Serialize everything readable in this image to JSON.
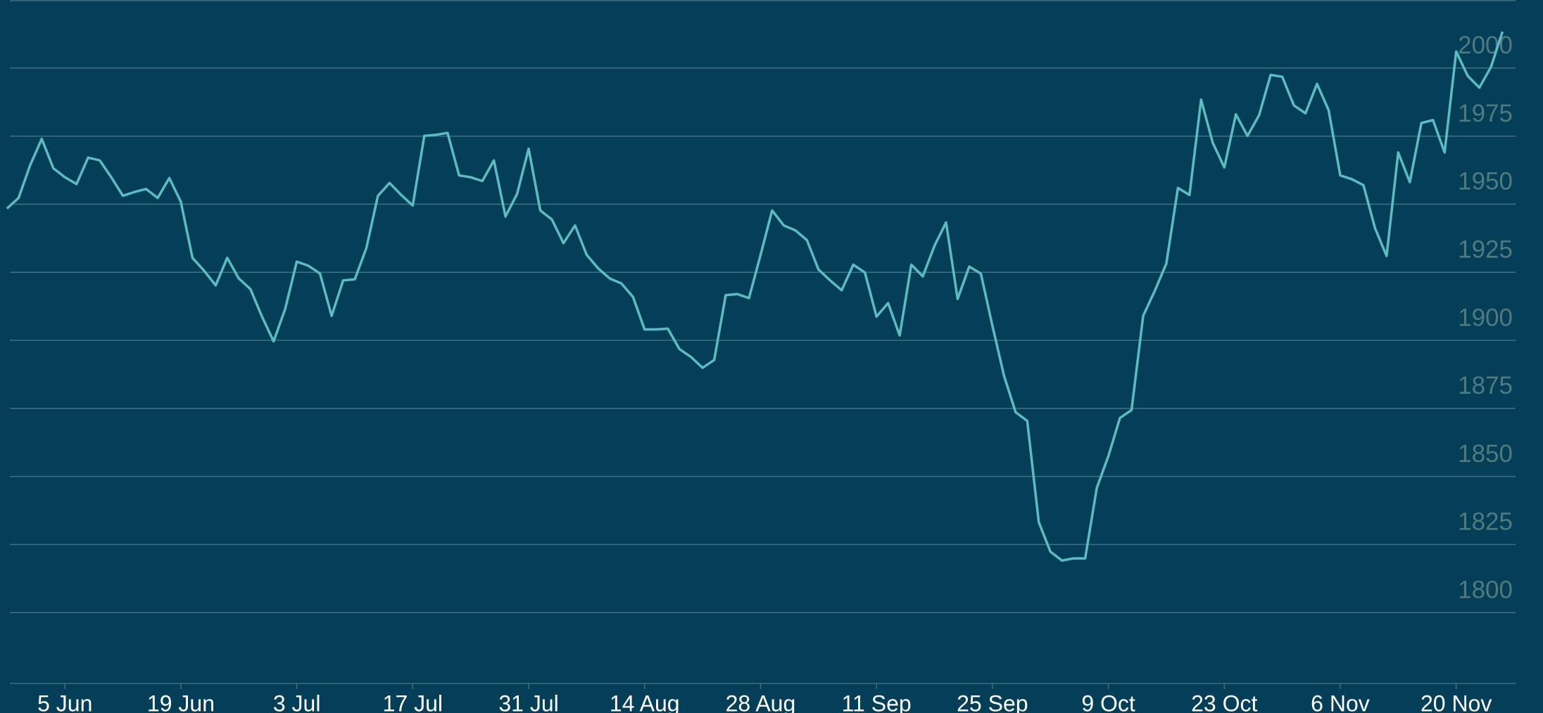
{
  "chart_data": {
    "type": "line",
    "color": "#5bbcc4",
    "grid": true,
    "ylim": [
      1775,
      2025
    ],
    "yticks": [
      1800,
      1825,
      1850,
      1875,
      1900,
      1925,
      1950,
      1975,
      2000
    ],
    "categories": [
      null,
      null,
      null,
      null,
      null,
      "5 Jun",
      null,
      null,
      null,
      null,
      null,
      null,
      null,
      null,
      null,
      "19 Jun",
      null,
      null,
      null,
      null,
      null,
      null,
      null,
      null,
      null,
      "3 Jul",
      null,
      null,
      null,
      null,
      null,
      null,
      null,
      null,
      null,
      "17 Jul",
      null,
      null,
      null,
      null,
      null,
      null,
      null,
      null,
      null,
      "31 Jul",
      null,
      null,
      null,
      null,
      null,
      null,
      null,
      null,
      null,
      "14 Aug",
      null,
      null,
      null,
      null,
      null,
      null,
      null,
      null,
      null,
      "28 Aug",
      null,
      null,
      null,
      null,
      null,
      null,
      null,
      null,
      null,
      "11 Sep",
      null,
      null,
      null,
      null,
      null,
      null,
      null,
      null,
      null,
      "25 Sep",
      null,
      null,
      null,
      null,
      null,
      null,
      null,
      null,
      null,
      "9 Oct",
      null,
      null,
      null,
      null,
      null,
      null,
      null,
      null,
      null,
      "23 Oct",
      null,
      null,
      null,
      null,
      null,
      null,
      null,
      null,
      null,
      "6 Nov",
      null,
      null,
      null,
      null,
      null,
      null,
      null,
      null,
      null,
      "20 Nov",
      null,
      null,
      null,
      null
    ],
    "values": [
      1948.4,
      1952.3,
      1964.3,
      1974.0,
      1963.2,
      1959.9,
      1957.4,
      1967.1,
      1966.1,
      1959.9,
      1953.1,
      1954.5,
      1955.6,
      1952.3,
      1959.6,
      1950.9,
      1930.3,
      1925.6,
      1920.2,
      1930.3,
      1922.7,
      1918.8,
      1908.7,
      1899.6,
      1911.6,
      1928.9,
      1927.4,
      1924.5,
      1909.0,
      1922.0,
      1922.4,
      1933.9,
      1953.1,
      1957.8,
      1953.4,
      1949.5,
      1975.1,
      1975.5,
      1976.2,
      1960.6,
      1959.9,
      1958.5,
      1966.1,
      1945.5,
      1953.8,
      1970.4,
      1947.7,
      1944.4,
      1935.7,
      1942.2,
      1931.4,
      1926.4,
      1922.7,
      1920.9,
      1915.9,
      1904.0,
      1904.0,
      1904.3,
      1896.8,
      1893.9,
      1889.9,
      1892.8,
      1916.6,
      1917.0,
      1915.5,
      1931.4,
      1947.7,
      1942.2,
      1940.4,
      1936.8,
      1926.0,
      1922.0,
      1918.4,
      1927.8,
      1924.9,
      1908.7,
      1913.7,
      1901.8,
      1927.8,
      1923.5,
      1934.7,
      1943.3,
      1915.2,
      1927.1,
      1924.5,
      1905.4,
      1887.0,
      1873.6,
      1870.4,
      1833.2,
      1822.4,
      1819.1,
      1819.9,
      1819.9,
      1845.8,
      1857.4,
      1871.5,
      1874.4,
      1909.0,
      1918.1,
      1928.2,
      1956.0,
      1953.4,
      1988.4,
      1972.6,
      1963.5,
      1983.0,
      1975.1,
      1982.7,
      1997.5,
      1996.8,
      1986.3,
      1983.4,
      1994.2,
      1984.5,
      1960.6,
      1959.2,
      1957.0,
      1941.2,
      1931.0,
      1969.0,
      1958.1,
      1979.8,
      1980.9,
      1969.0,
      2006.1,
      1997.1,
      1992.8,
      2000.4,
      2013.4
    ]
  }
}
